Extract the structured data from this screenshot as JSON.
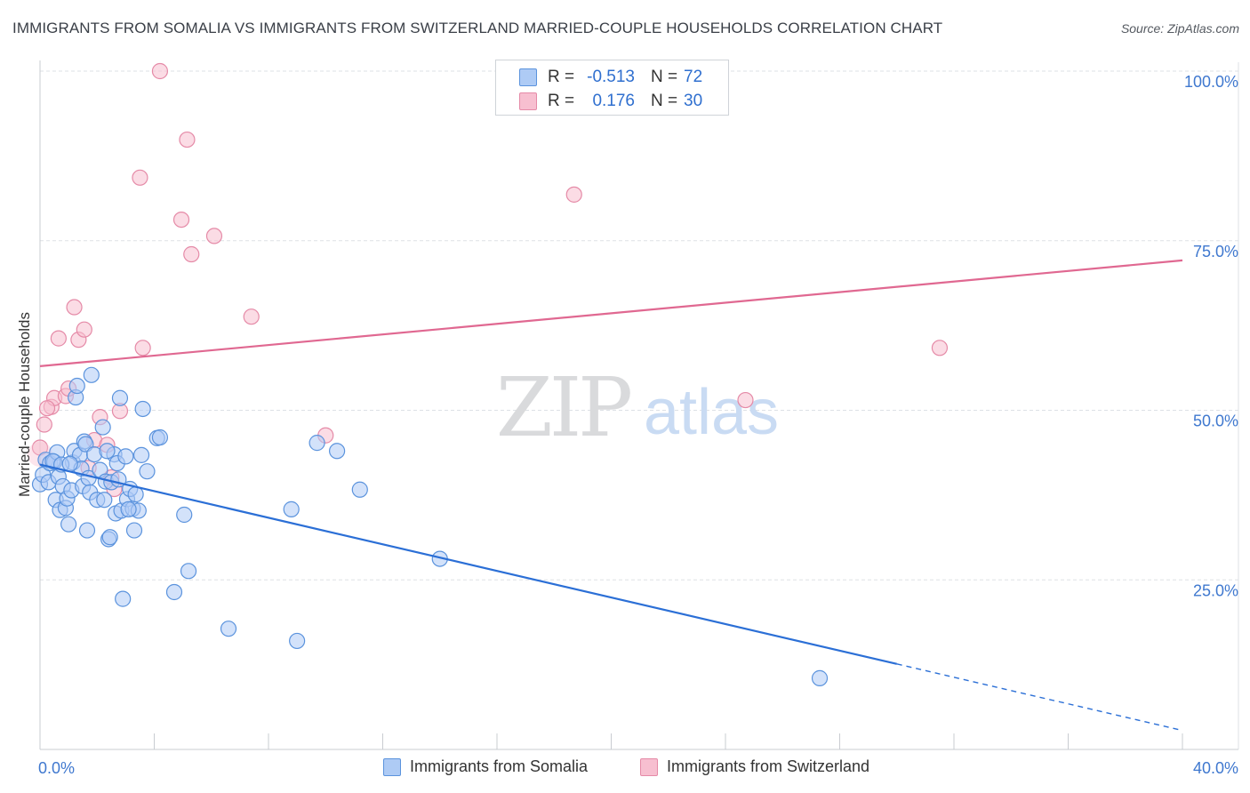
{
  "title": "IMMIGRANTS FROM SOMALIA VS IMMIGRANTS FROM SWITZERLAND MARRIED-COUPLE HOUSEHOLDS CORRELATION CHART",
  "source": "Source: ZipAtlas.com",
  "watermark": {
    "zip": "ZIP",
    "atlas": "atlas"
  },
  "colors": {
    "somalia_fill": "#aecbf5",
    "somalia_stroke": "#5b93dd",
    "somalia_line": "#2b6fd6",
    "switzerland_fill": "#f7bfd0",
    "switzerland_stroke": "#e58aa7",
    "switzerland_line": "#e06891",
    "axis_label": "#3f78cf",
    "grid": "#dde1e6"
  },
  "stats": {
    "somalia": {
      "r_label": "R =",
      "r_value": "-0.513",
      "n_label": "N =",
      "n_value": "72"
    },
    "switzerland": {
      "r_label": "R =",
      "r_value": "0.176",
      "n_label": "N =",
      "n_value": "30"
    }
  },
  "legend": {
    "somalia": "Immigrants from Somalia",
    "switzerland": "Immigrants from Switzerland"
  },
  "chart_data": {
    "type": "scatter",
    "title": "IMMIGRANTS FROM SOMALIA VS IMMIGRANTS FROM SWITZERLAND MARRIED-COUPLE HOUSEHOLDS CORRELATION CHART",
    "xlabel": "",
    "ylabel": "Married-couple Households",
    "xlim": [
      0,
      40
    ],
    "ylim": [
      0,
      102
    ],
    "x_tick_labels": [
      "0.0%",
      "40.0%"
    ],
    "y_ticks": [
      {
        "value": 25,
        "label": "25.0%"
      },
      {
        "value": 50,
        "label": "50.0%"
      },
      {
        "value": 75,
        "label": "75.0%"
      },
      {
        "value": 100,
        "label": "100.0%"
      }
    ],
    "grid": true,
    "legend_position": "bottom-center",
    "series": [
      {
        "name": "Immigrants from Somalia",
        "points": [
          [
            0.0,
            39.1
          ],
          [
            0.1,
            40.5
          ],
          [
            0.2,
            42.7
          ],
          [
            0.3,
            39.4
          ],
          [
            0.35,
            42.2
          ],
          [
            0.5,
            42.4
          ],
          [
            0.55,
            36.8
          ],
          [
            0.6,
            43.8
          ],
          [
            0.65,
            40.2
          ],
          [
            0.7,
            35.3
          ],
          [
            0.8,
            38.8
          ],
          [
            0.9,
            35.6
          ],
          [
            0.95,
            37.0
          ],
          [
            1.0,
            33.2
          ],
          [
            1.1,
            38.2
          ],
          [
            1.15,
            42.3
          ],
          [
            1.2,
            44.0
          ],
          [
            1.25,
            51.9
          ],
          [
            1.3,
            53.6
          ],
          [
            1.4,
            43.4
          ],
          [
            1.45,
            41.4
          ],
          [
            1.5,
            38.8
          ],
          [
            1.55,
            45.4
          ],
          [
            1.6,
            45.0
          ],
          [
            1.65,
            32.3
          ],
          [
            1.7,
            40.0
          ],
          [
            1.75,
            37.9
          ],
          [
            1.8,
            55.2
          ],
          [
            1.9,
            43.5
          ],
          [
            2.0,
            36.8
          ],
          [
            2.1,
            41.2
          ],
          [
            2.2,
            47.5
          ],
          [
            2.25,
            36.8
          ],
          [
            2.3,
            39.5
          ],
          [
            2.4,
            31.0
          ],
          [
            2.45,
            31.3
          ],
          [
            2.5,
            39.4
          ],
          [
            2.6,
            43.5
          ],
          [
            2.65,
            34.8
          ],
          [
            2.7,
            42.2
          ],
          [
            2.75,
            39.8
          ],
          [
            2.8,
            51.8
          ],
          [
            2.85,
            35.2
          ],
          [
            2.9,
            22.2
          ],
          [
            3.0,
            43.2
          ],
          [
            3.05,
            36.9
          ],
          [
            3.15,
            38.4
          ],
          [
            3.25,
            35.5
          ],
          [
            3.3,
            32.3
          ],
          [
            3.35,
            37.6
          ],
          [
            3.45,
            35.2
          ],
          [
            3.55,
            43.4
          ],
          [
            3.6,
            50.2
          ],
          [
            3.75,
            41.0
          ],
          [
            4.1,
            45.9
          ],
          [
            4.2,
            46.0
          ],
          [
            4.7,
            23.2
          ],
          [
            5.05,
            34.6
          ],
          [
            5.2,
            26.3
          ],
          [
            6.6,
            17.8
          ],
          [
            8.8,
            35.4
          ],
          [
            9.0,
            16.0
          ],
          [
            9.7,
            45.2
          ],
          [
            10.4,
            44.0
          ],
          [
            11.2,
            38.3
          ],
          [
            14.0,
            28.1
          ],
          [
            27.3,
            10.5
          ],
          [
            0.45,
            42.5
          ],
          [
            0.75,
            42.0
          ],
          [
            2.35,
            44.0
          ],
          [
            1.05,
            42.1
          ],
          [
            3.1,
            35.4
          ]
        ]
      },
      {
        "name": "Immigrants from Switzerland",
        "points": [
          [
            0.0,
            44.5
          ],
          [
            0.15,
            47.9
          ],
          [
            0.4,
            50.5
          ],
          [
            0.5,
            51.8
          ],
          [
            0.65,
            60.6
          ],
          [
            0.9,
            52.1
          ],
          [
            1.0,
            53.2
          ],
          [
            1.2,
            65.2
          ],
          [
            1.35,
            60.4
          ],
          [
            1.55,
            61.9
          ],
          [
            1.9,
            45.6
          ],
          [
            2.1,
            49.0
          ],
          [
            2.35,
            44.9
          ],
          [
            2.5,
            40.1
          ],
          [
            2.6,
            38.4
          ],
          [
            2.8,
            49.9
          ],
          [
            3.6,
            59.2
          ],
          [
            3.5,
            84.3
          ],
          [
            4.2,
            100.0
          ],
          [
            4.95,
            78.1
          ],
          [
            5.15,
            89.9
          ],
          [
            5.3,
            73.0
          ],
          [
            6.1,
            75.7
          ],
          [
            7.4,
            63.8
          ],
          [
            10.0,
            46.3
          ],
          [
            18.7,
            81.8
          ],
          [
            24.7,
            51.5
          ],
          [
            31.5,
            59.2
          ],
          [
            1.7,
            41.5
          ],
          [
            0.25,
            50.3
          ]
        ]
      }
    ],
    "trend_lines": [
      {
        "name": "Immigrants from Somalia",
        "x": [
          0,
          30.0
        ],
        "y": [
          42.0,
          12.6
        ],
        "dashed_extension_to_x": 40,
        "dashed_end_y": 2.8
      },
      {
        "name": "Immigrants from Switzerland",
        "x": [
          0,
          40
        ],
        "y": [
          56.5,
          72.1
        ]
      }
    ]
  }
}
